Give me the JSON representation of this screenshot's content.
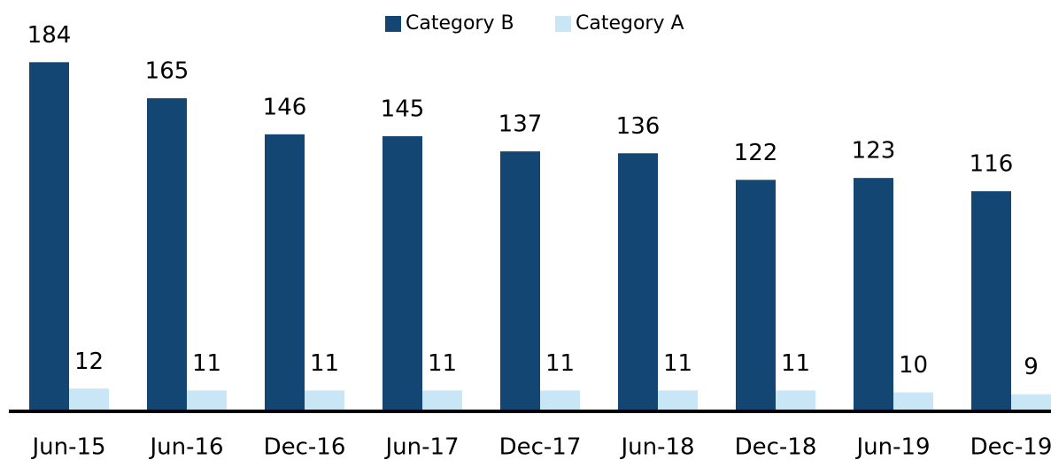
{
  "chart_data": {
    "type": "bar",
    "categories": [
      "Jun-15",
      "Jun-16",
      "Dec-16",
      "Jun-17",
      "Dec-17",
      "Jun-18",
      "Dec-18",
      "Jun-19",
      "Dec-19"
    ],
    "series": [
      {
        "name": "Category B",
        "color": "#134673",
        "values": [
          184,
          165,
          146,
          145,
          137,
          136,
          122,
          123,
          116
        ]
      },
      {
        "name": "Category A",
        "color": "#c9e6f7",
        "values": [
          12,
          11,
          11,
          11,
          11,
          11,
          11,
          10,
          9
        ]
      }
    ],
    "ylim": [
      0,
      200
    ],
    "legend": "top"
  }
}
